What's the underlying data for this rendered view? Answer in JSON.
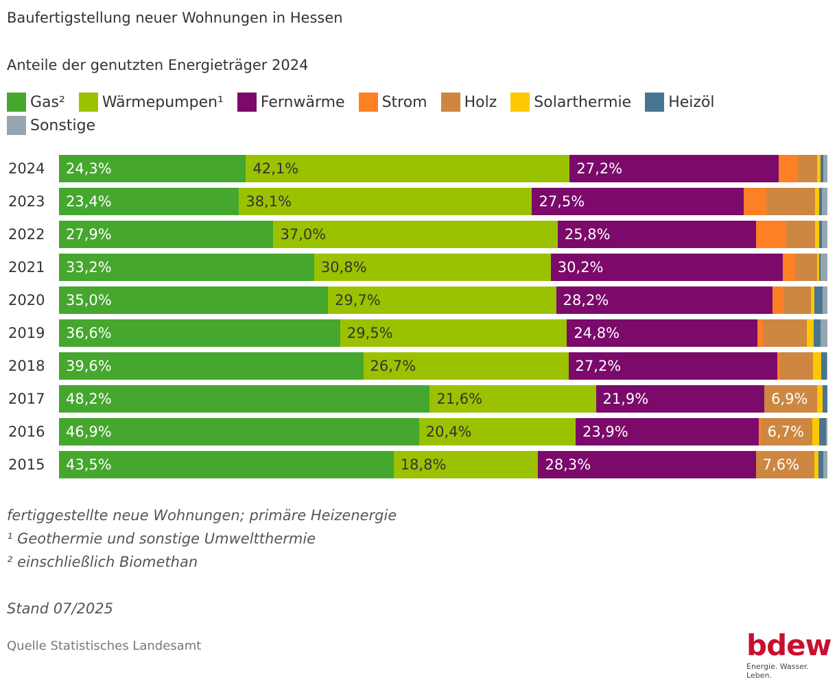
{
  "header": {
    "title": "Baufertigstellung neuer Wohnungen in Hessen",
    "subtitle": "Anteile der genutzten Energieträger 2024"
  },
  "footer": {
    "note": "fertiggestellte neue Wohnungen; primäre Heizenergie",
    "footnote1": "¹ Geothermie und sonstige Umweltthermie",
    "footnote2": "² einschließlich Biomethan",
    "stand": "Stand 07/2025",
    "source": "Quelle Statistisches Landesamt",
    "logo_word": "bdew",
    "logo_tagline": "Energie. Wasser. Leben."
  },
  "chart_data": {
    "type": "bar",
    "orientation": "horizontal",
    "stacked": true,
    "title": "Baufertigstellung neuer Wohnungen in Hessen",
    "subtitle": "Anteile der genutzten Energieträger 2024",
    "xlabel": "",
    "ylabel": "",
    "xlim": [
      0,
      100
    ],
    "grid": false,
    "legend_position": "top-left",
    "categories": [
      "2024",
      "2023",
      "2022",
      "2021",
      "2020",
      "2019",
      "2018",
      "2017",
      "2016",
      "2015"
    ],
    "series": [
      {
        "name": "Gas²",
        "color": "#45a72d",
        "label_color": "#ffffff",
        "values": [
          24.3,
          23.4,
          27.9,
          33.2,
          35.0,
          36.6,
          39.6,
          48.2,
          46.9,
          43.5
        ],
        "labels": [
          "24,3%",
          "23,4%",
          "27,9%",
          "33,2%",
          "35,0%",
          "36,6%",
          "39,6%",
          "48,2%",
          "46,9%",
          "43,5%"
        ]
      },
      {
        "name": "Wärmepumpen¹",
        "color": "#9bc200",
        "label_color": "#333333",
        "values": [
          42.1,
          38.1,
          37.0,
          30.8,
          29.7,
          29.5,
          26.7,
          21.6,
          20.4,
          18.8
        ],
        "labels": [
          "42,1%",
          "38,1%",
          "37,0%",
          "30,8%",
          "29,7%",
          "29,5%",
          "26,7%",
          "21,6%",
          "20,4%",
          "18,8%"
        ]
      },
      {
        "name": "Fernwärme",
        "color": "#7b0a6b",
        "label_color": "#ffffff",
        "values": [
          27.2,
          27.5,
          25.8,
          30.2,
          28.2,
          24.8,
          27.2,
          21.9,
          23.9,
          28.3
        ],
        "labels": [
          "27,2%",
          "27,5%",
          "25,8%",
          "30,2%",
          "28,2%",
          "24,8%",
          "27,2%",
          "21,9%",
          "23,9%",
          "28,3%"
        ]
      },
      {
        "name": "Strom",
        "color": "#fd8025",
        "label_color": "#ffffff",
        "values": [
          2.5,
          3.0,
          3.9,
          1.6,
          1.4,
          0.7,
          0.3,
          0.0,
          0.2,
          0.0
        ],
        "labels": [
          "",
          "",
          "",
          "",
          "",
          "",
          "",
          "",
          "",
          ""
        ]
      },
      {
        "name": "Holz",
        "color": "#cd8741",
        "label_color": "#ffffff",
        "values": [
          2.5,
          6.3,
          3.8,
          2.9,
          3.6,
          5.7,
          4.3,
          6.9,
          6.7,
          7.6
        ],
        "labels": [
          "",
          "",
          "",
          "",
          "",
          "",
          "",
          "6,9%",
          "6,7%",
          "7,6%"
        ]
      },
      {
        "name": "Solarthermie",
        "color": "#fdc800",
        "label_color": "#333333",
        "values": [
          0.4,
          0.5,
          0.5,
          0.2,
          0.4,
          0.9,
          1.1,
          0.7,
          0.9,
          0.5
        ],
        "labels": [
          "",
          "",
          "",
          "",
          "",
          "",
          "",
          "",
          "",
          ""
        ]
      },
      {
        "name": "Heizöl",
        "color": "#497593",
        "label_color": "#ffffff",
        "values": [
          0.4,
          0.4,
          0.4,
          0.2,
          1.1,
          0.9,
          0.7,
          0.6,
          0.9,
          0.7
        ],
        "labels": [
          "",
          "",
          "",
          "",
          "",
          "",
          "",
          "",
          "",
          ""
        ]
      },
      {
        "name": "Sonstige",
        "color": "#96a5b0",
        "label_color": "#333333",
        "values": [
          0.5,
          0.7,
          0.7,
          0.9,
          0.6,
          0.9,
          0.1,
          0.0,
          0.2,
          0.5
        ],
        "labels": [
          "",
          "",
          "",
          "",
          "",
          "",
          "",
          "",
          "",
          ""
        ]
      }
    ]
  }
}
